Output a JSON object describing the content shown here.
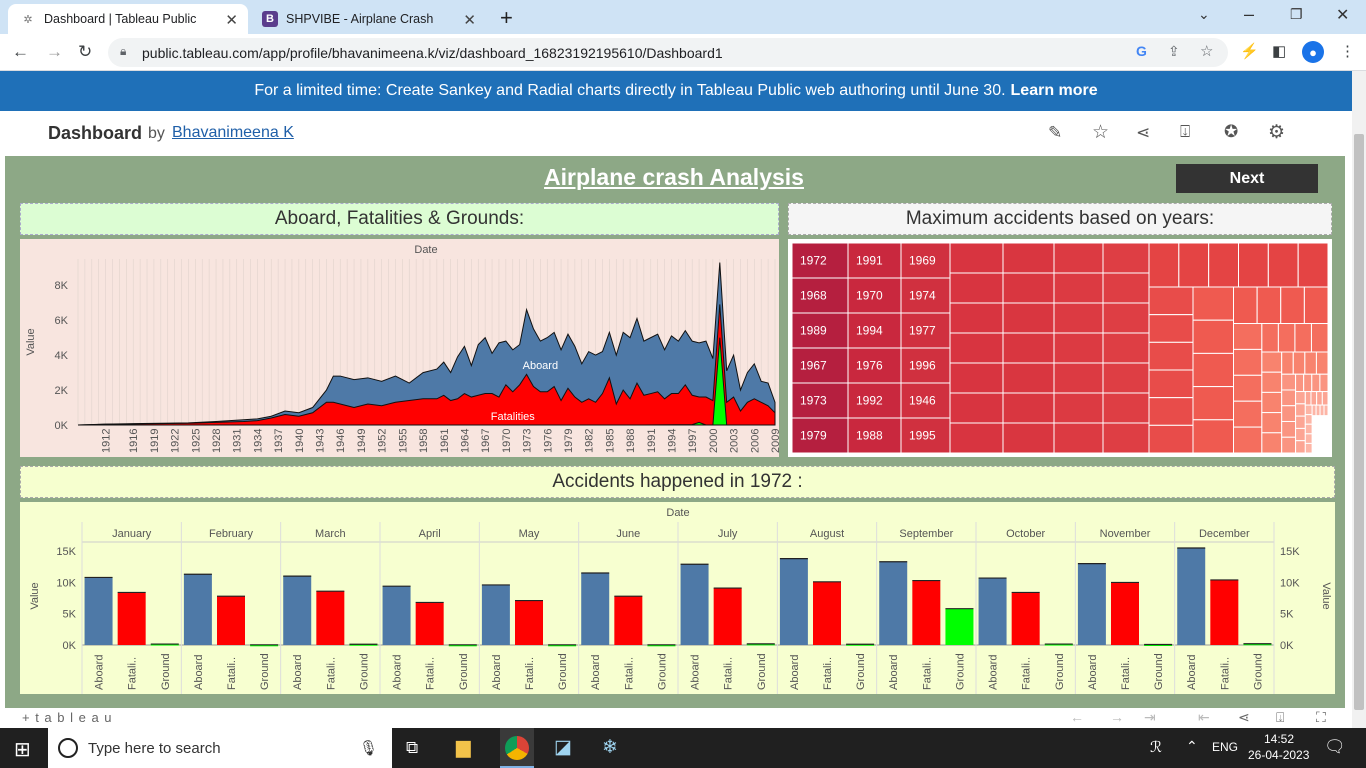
{
  "browser": {
    "tabs": [
      {
        "title": "Dashboard | Tableau Public",
        "active": true,
        "icon": "tableau-icon"
      },
      {
        "title": "SHPVIBE - Airplane Crash",
        "active": false,
        "icon": "b-icon"
      }
    ],
    "new_tab": "+",
    "url": "public.tableau.com/app/profile/bhavanimeena.k/viz/dashboard_16823192195610/Dashboard1"
  },
  "banner": {
    "text": "For a limited time: Create Sankey and Radial charts directly in Tableau Public web authoring until June 30.",
    "link": "Learn more"
  },
  "header": {
    "title": "Dashboard",
    "by": "by",
    "author": "Bhavanimeena K"
  },
  "dashboard": {
    "title": "Airplane crash Analysis",
    "next_button": "Next",
    "area_title": "Aboard, Fatalities & Grounds:",
    "treemap_title": "Maximum accidents based on years:",
    "bar_title": "Accidents happened in 1972 :"
  },
  "colors": {
    "aboard": "#4e79a7",
    "fatalities": "#ff0000",
    "ground": "#00ff00",
    "dashboard_bg": "#8da886",
    "banner": "#1f70b8"
  },
  "chart_data": [
    {
      "type": "area",
      "title": "Aboard, Fatalities & Grounds:",
      "header": "Date",
      "ylabel": "Value",
      "y_ticks": [
        "0K",
        "2K",
        "4K",
        "6K",
        "8K"
      ],
      "x_ticks": [
        "1912",
        "1916",
        "1919",
        "1922",
        "1925",
        "1928",
        "1931",
        "1934",
        "1937",
        "1940",
        "1943",
        "1946",
        "1949",
        "1952",
        "1955",
        "1958",
        "1961",
        "1964",
        "1967",
        "1970",
        "1973",
        "1976",
        "1979",
        "1982",
        "1985",
        "1988",
        "1991",
        "1994",
        "1997",
        "2000",
        "2003",
        "2006",
        "2009"
      ],
      "ylim": [
        0,
        9500
      ],
      "xlim": [
        1908,
        2009
      ],
      "series": [
        {
          "name": "Aboard",
          "x": [
            1908,
            1912,
            1916,
            1920,
            1924,
            1928,
            1932,
            1934,
            1936,
            1938,
            1940,
            1942,
            1944,
            1945,
            1946,
            1948,
            1950,
            1952,
            1954,
            1956,
            1958,
            1960,
            1961,
            1962,
            1963,
            1964,
            1965,
            1966,
            1967,
            1968,
            1969,
            1970,
            1971,
            1972,
            1973,
            1974,
            1975,
            1976,
            1977,
            1978,
            1979,
            1980,
            1981,
            1982,
            1983,
            1984,
            1985,
            1986,
            1987,
            1988,
            1989,
            1990,
            1991,
            1992,
            1993,
            1994,
            1995,
            1996,
            1997,
            1998,
            1999,
            2000,
            2001,
            2002,
            2003,
            2004,
            2005,
            2006,
            2007,
            2008,
            2009
          ],
          "values": [
            0,
            50,
            80,
            100,
            120,
            200,
            300,
            350,
            500,
            800,
            700,
            1000,
            2000,
            2800,
            2800,
            2600,
            2700,
            2500,
            2800,
            2400,
            3000,
            3200,
            3600,
            3000,
            3900,
            4500,
            3400,
            4600,
            5000,
            4100,
            4700,
            4800,
            4300,
            4600,
            6600,
            5500,
            4800,
            5000,
            5300,
            4300,
            5200,
            4500,
            3500,
            4200,
            4000,
            4200,
            5300,
            4000,
            5300,
            5000,
            6100,
            4800,
            5000,
            5200,
            4300,
            5100,
            4800,
            5400,
            4800,
            4700,
            4800,
            3800,
            9300,
            3100,
            4000,
            2000,
            3000,
            3500,
            2500,
            2400,
            1300
          ]
        },
        {
          "name": "Fatalities",
          "x": [
            1908,
            1912,
            1916,
            1920,
            1924,
            1928,
            1932,
            1934,
            1936,
            1938,
            1940,
            1942,
            1944,
            1945,
            1946,
            1948,
            1950,
            1952,
            1954,
            1956,
            1958,
            1960,
            1961,
            1962,
            1963,
            1964,
            1965,
            1966,
            1967,
            1968,
            1969,
            1970,
            1971,
            1972,
            1973,
            1974,
            1975,
            1976,
            1977,
            1978,
            1979,
            1980,
            1981,
            1982,
            1983,
            1984,
            1985,
            1986,
            1987,
            1988,
            1989,
            1990,
            1991,
            1992,
            1993,
            1994,
            1995,
            1996,
            1997,
            1998,
            1999,
            2000,
            2001,
            2002,
            2003,
            2004,
            2005,
            2006,
            2007,
            2008,
            2009
          ],
          "values": [
            0,
            40,
            60,
            80,
            100,
            150,
            200,
            250,
            400,
            600,
            500,
            700,
            1300,
            1300,
            1200,
            1000,
            1200,
            1100,
            1300,
            1400,
            1500,
            1500,
            1700,
            1400,
            1500,
            1800,
            1600,
            1700,
            1800,
            1800,
            1600,
            2300,
            1900,
            2300,
            2900,
            2200,
            1900,
            1900,
            2200,
            1400,
            2100,
            1600,
            1300,
            1500,
            1300,
            1800,
            2700,
            1200,
            2000,
            1500,
            2400,
            1700,
            1800,
            1900,
            1500,
            1800,
            1800,
            2300,
            1700,
            1600,
            1600,
            1400,
            6900,
            1300,
            1600,
            800,
            1300,
            1500,
            1300,
            1100,
            700
          ]
        },
        {
          "name": "Ground",
          "x": [
            1908,
            1990,
            1997,
            1998,
            1999,
            2000,
            2001,
            2002,
            2003,
            2009
          ],
          "values": [
            0,
            0,
            20,
            150,
            0,
            0,
            5000,
            0,
            0,
            0
          ]
        }
      ],
      "annotations": [
        "Aboard",
        "Fatalities"
      ]
    },
    {
      "type": "heatmap",
      "title": "Maximum accidents based on years:",
      "labeled_cells": [
        [
          "1972",
          "1991",
          "1969"
        ],
        [
          "1968",
          "1970",
          "1974"
        ],
        [
          "1989",
          "1994",
          "1977"
        ],
        [
          "1967",
          "1976",
          "1996"
        ],
        [
          "1973",
          "1992",
          "1946"
        ],
        [
          "1979",
          "1988",
          "1995"
        ]
      ]
    },
    {
      "type": "bar",
      "title": "Accidents happened in 1972 :",
      "header": "Date",
      "ylabel": "Value",
      "y_ticks": [
        "0K",
        "5K",
        "10K",
        "15K"
      ],
      "ylim": [
        0,
        15500
      ],
      "categories": [
        "January",
        "February",
        "March",
        "April",
        "May",
        "June",
        "July",
        "August",
        "September",
        "October",
        "November",
        "December"
      ],
      "measure_labels": [
        "Aboard",
        "Fatali..",
        "Ground"
      ],
      "series": [
        {
          "name": "Aboard",
          "values": [
            10800,
            11300,
            11000,
            9400,
            9600,
            11500,
            12900,
            13800,
            13300,
            10700,
            13000,
            15500
          ]
        },
        {
          "name": "Fatalities",
          "values": [
            8400,
            7800,
            8600,
            6800,
            7100,
            7800,
            9100,
            10100,
            10300,
            8400,
            10000,
            10400
          ]
        },
        {
          "name": "Ground",
          "values": [
            150,
            30,
            120,
            30,
            30,
            30,
            180,
            120,
            5800,
            150,
            80,
            200
          ]
        }
      ]
    }
  ],
  "footer": {
    "logo": "+ t a b l e a u"
  },
  "taskbar": {
    "search_placeholder": "Type here to search",
    "language": "ENG",
    "time": "14:52",
    "date": "26-04-2023"
  }
}
